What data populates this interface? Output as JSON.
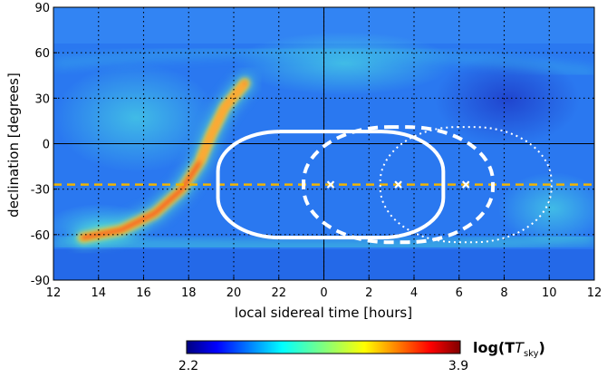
{
  "chart_data": {
    "type": "heatmap",
    "title": "",
    "xlabel": "local sidereal time [hours]",
    "ylabel": "declination [degrees]",
    "x_tick_labels": [
      "12",
      "14",
      "16",
      "18",
      "20",
      "22",
      "0",
      "2",
      "4",
      "6",
      "8",
      "10",
      "12"
    ],
    "y_tick_labels": [
      "90",
      "60",
      "30",
      "0",
      "-30",
      "-60",
      "-90"
    ],
    "y_ticks": [
      90,
      60,
      30,
      0,
      -30,
      -60,
      -90
    ],
    "xlim_lst_hours": [
      12,
      36
    ],
    "ylim": [
      -90,
      90
    ],
    "grid": "dotted",
    "reference_lines": {
      "declination_zero": 0,
      "lst_zero_hours": 24,
      "dashed_declination": -27
    },
    "colorbar": {
      "label": "log(T",
      "label_subscript": "sky",
      "label_close": ")",
      "min_label": "2.2",
      "max_label": "3.9",
      "min": 2.2,
      "max": 3.9,
      "colormap": "jet"
    },
    "galactic_plane": {
      "ridge": [
        {
          "lst_hours": 13.3,
          "dec": -62
        },
        {
          "lst_hours": 15.0,
          "dec": -57
        },
        {
          "lst_hours": 16.5,
          "dec": -46
        },
        {
          "lst_hours": 17.7,
          "dec": -30
        },
        {
          "lst_hours": 18.5,
          "dec": -12
        },
        {
          "lst_hours": 19.0,
          "dec": 6
        },
        {
          "lst_hours": 19.6,
          "dec": 24
        },
        {
          "lst_hours": 20.5,
          "dec": 40
        }
      ]
    },
    "markers": [
      {
        "lst_hours": 24.3,
        "dec": -27,
        "symbol": "x"
      },
      {
        "lst_hours": 27.3,
        "dec": -27,
        "symbol": "x"
      },
      {
        "lst_hours": 30.3,
        "dec": -27,
        "symbol": "x"
      }
    ],
    "beam_contours": [
      {
        "center_lst_hours": 24.3,
        "center_dec": -27,
        "half_width_hours": 5.0,
        "half_height_deg": 35,
        "style": "solid"
      },
      {
        "center_lst_hours": 27.3,
        "center_dec": -27,
        "half_width_hours": 4.2,
        "half_height_deg": 38,
        "style": "dashed"
      },
      {
        "center_lst_hours": 30.3,
        "center_dec": -27,
        "half_width_hours": 3.8,
        "half_height_deg": 38,
        "style": "dotted"
      }
    ],
    "colors": {
      "dashed_line": "#f0b400",
      "contour": "#ffffff",
      "marker": "#ffffff"
    }
  }
}
